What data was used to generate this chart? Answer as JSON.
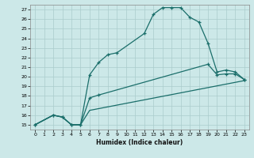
{
  "bg_color": "#cce8e8",
  "grid_color": "#aacccc",
  "line_color": "#1a6e6a",
  "xlabel": "Humidex (Indice chaleur)",
  "xlim": [
    -0.5,
    23.5
  ],
  "ylim": [
    14.5,
    27.5
  ],
  "xticks": [
    0,
    1,
    2,
    3,
    4,
    5,
    6,
    7,
    8,
    9,
    10,
    11,
    12,
    13,
    14,
    15,
    16,
    17,
    18,
    19,
    20,
    21,
    22,
    23
  ],
  "yticks": [
    15,
    16,
    17,
    18,
    19,
    20,
    21,
    22,
    23,
    24,
    25,
    26,
    27
  ],
  "curve1_x": [
    0,
    2,
    3,
    4,
    5,
    6,
    7,
    8,
    9,
    12,
    13,
    14,
    15,
    16,
    17,
    18,
    19,
    20,
    21,
    22,
    23
  ],
  "curve1_y": [
    15,
    16,
    15.8,
    15,
    15,
    20.2,
    21.5,
    22.3,
    22.5,
    24.5,
    26.5,
    27.2,
    27.2,
    27.2,
    26.2,
    25.7,
    23.5,
    20.5,
    20.7,
    20.5,
    19.7
  ],
  "curve2_x": [
    0,
    2,
    3,
    4,
    5,
    6,
    7,
    19,
    20,
    21,
    22,
    23
  ],
  "curve2_y": [
    15,
    16,
    15.8,
    15,
    15,
    17.8,
    18.1,
    21.3,
    20.2,
    20.3,
    20.3,
    19.7
  ],
  "curve3_x": [
    0,
    2,
    3,
    4,
    5,
    6,
    23
  ],
  "curve3_y": [
    15,
    16,
    15.8,
    15,
    15,
    16.5,
    19.6
  ]
}
